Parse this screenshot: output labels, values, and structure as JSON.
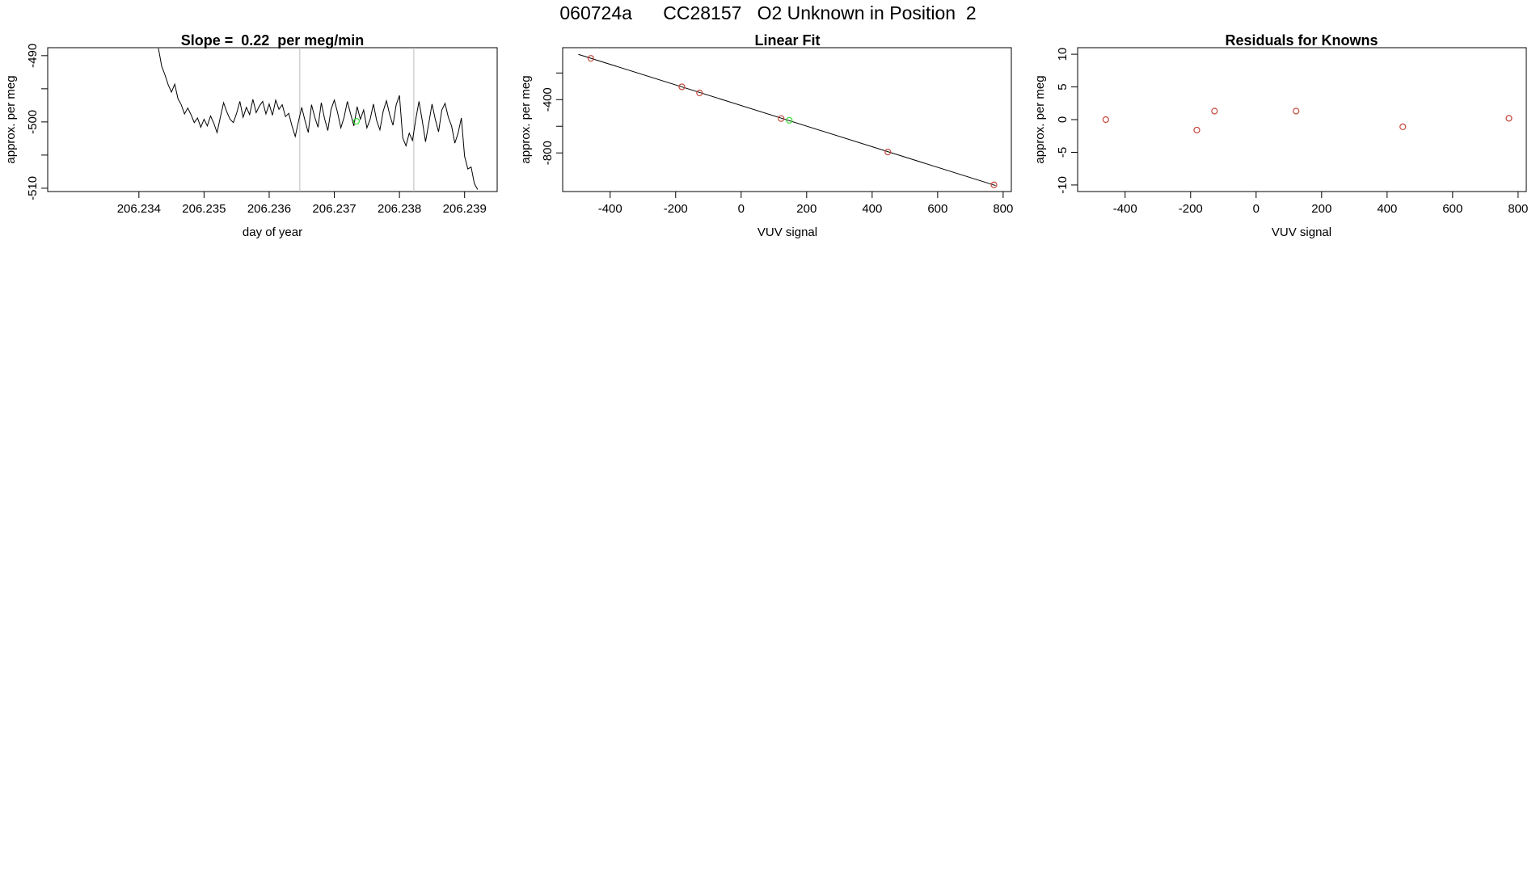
{
  "figure": {
    "title": "060724a      CC28157   O2 Unknown in Position  2"
  },
  "colors": {
    "line": "#000000",
    "known_point": "#c4473c",
    "unknown_point": "#33dd33",
    "marker_line": "#bbbbbb"
  },
  "chart_data": [
    {
      "type": "line",
      "title": "Slope =  0.22  per meg/min",
      "xlabel": "day of year",
      "ylabel": "approx. per meg",
      "xlim": [
        206.2326,
        206.2395
      ],
      "ylim": [
        -510.5,
        -488.8
      ],
      "xticks": [
        206.234,
        206.235,
        206.236,
        206.237,
        206.238,
        206.239
      ],
      "xtick_labels": [
        "206.234",
        "206.235",
        "206.236",
        "206.237",
        "206.238",
        "206.239"
      ],
      "yticks": [
        -510,
        -505,
        -500,
        -495,
        -490
      ],
      "ytick_labels": [
        "-510",
        "",
        "-500",
        "",
        "-490"
      ],
      "vertical_markers": [
        206.23647,
        206.23822
      ],
      "highlight_point": {
        "x": 206.23734,
        "y": -499.9
      },
      "series": [
        {
          "x": [
            206.2343,
            206.23435,
            206.2344,
            206.23445,
            206.2345,
            206.23455,
            206.2346,
            206.23465,
            206.2347,
            206.23475,
            206.2348,
            206.23485,
            206.2349,
            206.23495,
            206.235,
            206.23505,
            206.2351,
            206.23515,
            206.2352,
            206.23525,
            206.2353,
            206.23535,
            206.2354,
            206.23545,
            206.2355,
            206.23555,
            206.2356,
            206.23565,
            206.2357,
            206.23575,
            206.2358,
            206.23585,
            206.2359,
            206.23595,
            206.236,
            206.23605,
            206.2361,
            206.23615,
            206.2362,
            206.23625,
            206.2363,
            206.23635,
            206.2364,
            206.23645,
            206.2365,
            206.23655,
            206.2366,
            206.23665,
            206.2367,
            206.23675,
            206.2368,
            206.23685,
            206.2369,
            206.23695,
            206.237,
            206.23705,
            206.2371,
            206.23715,
            206.2372,
            206.23725,
            206.2373,
            206.23735,
            206.2374,
            206.23745,
            206.2375,
            206.23755,
            206.2376,
            206.23765,
            206.2377,
            206.23775,
            206.2378,
            206.23785,
            206.2379,
            206.23795,
            206.238,
            206.23805,
            206.2381,
            206.23815,
            206.2382,
            206.23825,
            206.2383,
            206.23835,
            206.2384,
            206.23845,
            206.2385,
            206.23855,
            206.2386,
            206.23865,
            206.2387,
            206.23875,
            206.2388,
            206.23885,
            206.2389,
            206.23895,
            206.239,
            206.23905,
            206.2391,
            206.23915,
            206.2392
          ],
          "y": [
            -488.9,
            -491.6,
            -492.9,
            -494.4,
            -495.5,
            -494.3,
            -496.5,
            -497.4,
            -498.8,
            -497.9,
            -498.9,
            -500.1,
            -499.4,
            -500.8,
            -499.6,
            -500.6,
            -499.1,
            -500.2,
            -501.6,
            -499.3,
            -497.1,
            -498.5,
            -499.6,
            -500.1,
            -498.7,
            -496.9,
            -499.3,
            -497.8,
            -498.9,
            -496.6,
            -498.6,
            -497.6,
            -496.9,
            -498.8,
            -497.3,
            -499.0,
            -496.7,
            -498.1,
            -497.4,
            -499.2,
            -498.7,
            -500.6,
            -502.2,
            -499.9,
            -497.8,
            -499.8,
            -501.6,
            -497.4,
            -499.3,
            -500.8,
            -497.1,
            -499.5,
            -501.3,
            -498.1,
            -496.7,
            -498.6,
            -500.9,
            -499.3,
            -496.9,
            -498.8,
            -500.6,
            -497.7,
            -499.6,
            -498.2,
            -500.9,
            -499.6,
            -497.3,
            -499.8,
            -501.2,
            -498.4,
            -496.8,
            -498.9,
            -500.5,
            -497.4,
            -496.0,
            -502.4,
            -503.6,
            -501.7,
            -502.8,
            -499.6,
            -496.9,
            -499.8,
            -503.0,
            -500.2,
            -497.3,
            -499.6,
            -501.5,
            -498.2,
            -497.2,
            -499.3,
            -500.6,
            -503.2,
            -501.7,
            -499.4,
            -505.2,
            -507.1,
            -506.8,
            -509.3,
            -510.2
          ]
        }
      ]
    },
    {
      "type": "scatter",
      "title": "Linear Fit",
      "xlabel": "VUV signal",
      "ylabel": "approx. per meg",
      "xlim": [
        -545,
        825
      ],
      "ylim": [
        -1090,
        -10
      ],
      "xticks": [
        -400,
        -200,
        0,
        200,
        400,
        600,
        800
      ],
      "xtick_labels": [
        "-400",
        "-200",
        "0",
        "200",
        "400",
        "600",
        "800"
      ],
      "yticks": [
        -800,
        -600,
        -400,
        -200
      ],
      "ytick_labels": [
        "-800",
        "",
        "-400",
        ""
      ],
      "fit_line": {
        "x": [
          -497,
          777
        ],
        "y": [
          -60,
          -1045
        ]
      },
      "known_points": {
        "x": [
          -459,
          -181,
          -127,
          122,
          448,
          772
        ],
        "y": [
          -90,
          -304,
          -350,
          -542,
          -793,
          -1040
        ]
      },
      "unknown_point": {
        "x": 147,
        "y": -555
      }
    },
    {
      "type": "scatter",
      "title": "Residuals for Knowns",
      "xlabel": "VUV signal",
      "ylabel": "approx. per meg",
      "xlim": [
        -545,
        825
      ],
      "ylim": [
        -11,
        11
      ],
      "xticks": [
        -400,
        -200,
        0,
        200,
        400,
        600,
        800
      ],
      "xtick_labels": [
        "-400",
        "-200",
        "0",
        "200",
        "400",
        "600",
        "800"
      ],
      "yticks": [
        -10,
        -5,
        0,
        5,
        10
      ],
      "ytick_labels": [
        "-10",
        "-5",
        "0",
        "5",
        "10"
      ],
      "points": {
        "x": [
          -459,
          -181,
          -127,
          122,
          448,
          772
        ],
        "y": [
          0.0,
          -1.6,
          1.3,
          1.3,
          -1.1,
          0.2
        ]
      }
    }
  ]
}
